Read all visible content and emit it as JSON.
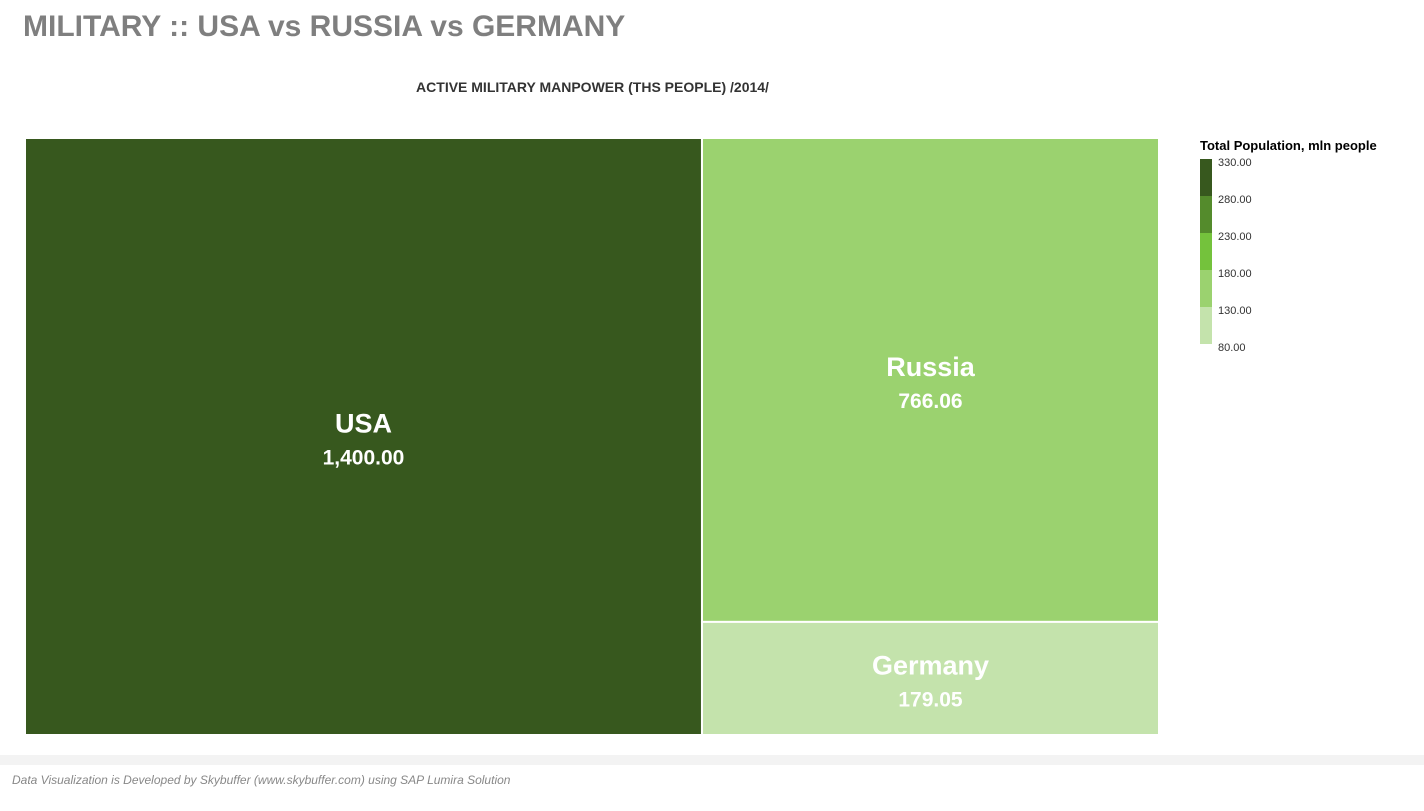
{
  "page": {
    "title": "MILITARY :: USA vs RUSSIA vs GERMANY",
    "footer": "Data Visualization is Developed by Skybuffer (www.skybuffer.com) using SAP Lumira Solution"
  },
  "chart_data": {
    "type": "treemap",
    "title": "ACTIVE MILITARY MANPOWER (THS PEOPLE) /2014/",
    "size_measure": "",
    "color_measure": "Total Population, mln people",
    "items": [
      {
        "name": "USA",
        "value": 1400.0,
        "value_label": "1,400.00",
        "color_value": 320,
        "color": "#37581e"
      },
      {
        "name": "Russia",
        "value": 766.06,
        "value_label": "766.06",
        "color_value": 143,
        "color": "#9bd26f"
      },
      {
        "name": "Germany",
        "value": 179.05,
        "value_label": "179.05",
        "color_value": 81,
        "color": "#c4e3ac"
      }
    ],
    "legend": {
      "title": "Total Population, mln people",
      "placement": "right",
      "ticks": [
        "330.00",
        "280.00",
        "230.00",
        "180.00",
        "130.00",
        "80.00"
      ],
      "colors": [
        "#37581e",
        "#548b2c",
        "#74c23c",
        "#9bd26f",
        "#c4e3ac"
      ]
    }
  }
}
